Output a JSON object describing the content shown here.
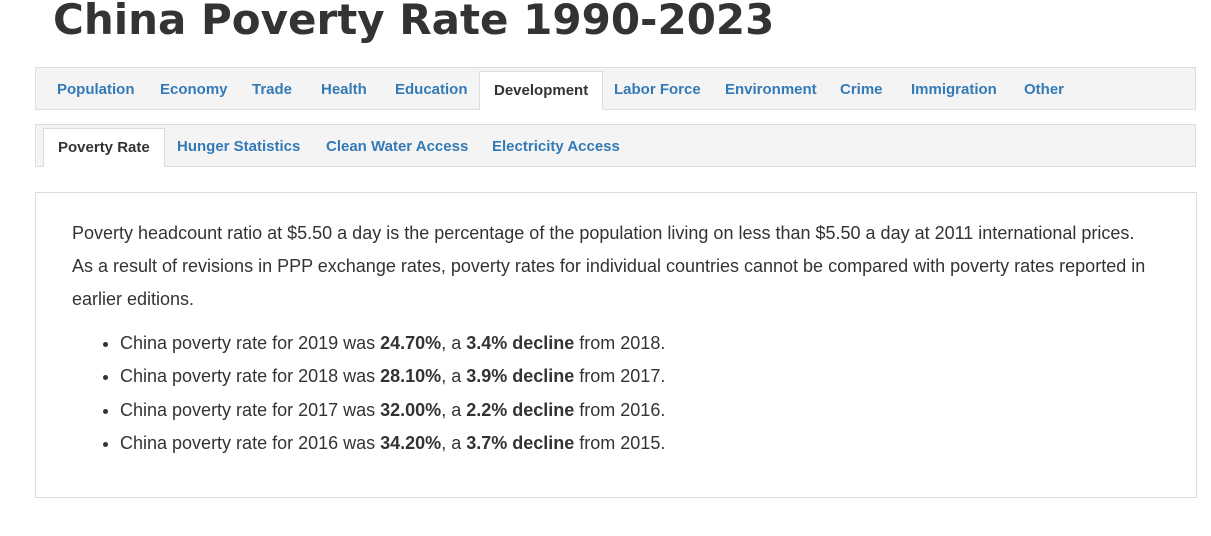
{
  "page": {
    "title": "China Poverty Rate 1990-2023"
  },
  "main_tabs": [
    {
      "label": "Population"
    },
    {
      "label": "Economy"
    },
    {
      "label": "Trade"
    },
    {
      "label": "Health"
    },
    {
      "label": "Education"
    },
    {
      "label": "Development",
      "active": true
    },
    {
      "label": "Labor Force"
    },
    {
      "label": "Environment"
    },
    {
      "label": "Crime"
    },
    {
      "label": "Immigration"
    },
    {
      "label": "Other"
    }
  ],
  "sub_tabs": [
    {
      "label": "Poverty Rate",
      "active": true
    },
    {
      "label": "Hunger Statistics"
    },
    {
      "label": "Clean Water Access"
    },
    {
      "label": "Electricity Access"
    }
  ],
  "content": {
    "description": "Poverty headcount ratio at $5.50 a day is the percentage of the population living on less than $5.50 a day at 2011 international prices. As a result of revisions in PPP exchange rates, poverty rates for individual countries cannot be compared with poverty rates reported in earlier editions.",
    "facts": [
      {
        "prefix": "China poverty rate for 2019 was ",
        "value": "24.70%",
        "middle": ", a ",
        "change": "3.4% decline",
        "suffix": " from 2018."
      },
      {
        "prefix": "China poverty rate for 2018 was ",
        "value": "28.10%",
        "middle": ", a ",
        "change": "3.9% decline",
        "suffix": " from 2017."
      },
      {
        "prefix": "China poverty rate for 2017 was ",
        "value": "32.00%",
        "middle": ", a ",
        "change": "2.2% decline",
        "suffix": " from 2016."
      },
      {
        "prefix": "China poverty rate for 2016 was ",
        "value": "34.20%",
        "middle": ", a ",
        "change": "3.7% decline",
        "suffix": " from 2015."
      }
    ]
  },
  "colors": {
    "link": "#337ab7",
    "text": "#333333",
    "tabbar_bg": "#f4f4f4",
    "border": "#dddddd"
  }
}
